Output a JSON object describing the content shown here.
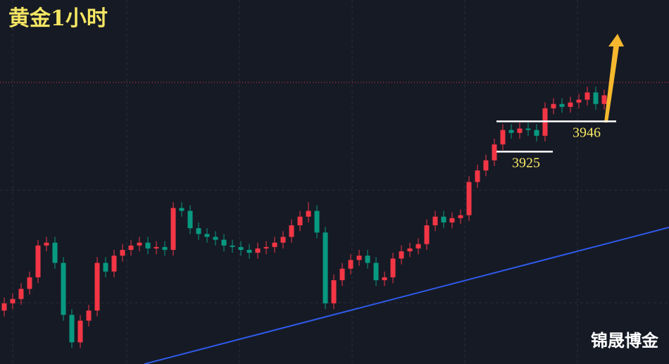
{
  "chart_data": {
    "type": "candlestick",
    "title": "黄金1小时",
    "watermark": "锦晟博金",
    "up_color": "#f23645",
    "down_color": "#089981",
    "ylim": [
      3778,
      4030
    ],
    "price_line": 3973,
    "levels": [
      {
        "label": "3946",
        "value": 3946
      },
      {
        "label": "3925",
        "value": 3925
      }
    ],
    "open": [
      3815,
      3820,
      3823,
      3830,
      3838,
      3860,
      3862,
      3848,
      3812,
      3793,
      3808,
      3815,
      3848,
      3842,
      3853,
      3857,
      3860,
      3862,
      3858,
      3859,
      3857,
      3886,
      3884,
      3872,
      3868,
      3866,
      3864,
      3860,
      3859,
      3857,
      3855,
      3858,
      3859,
      3862,
      3866,
      3874,
      3880,
      3884,
      3869,
      3820,
      3836,
      3844,
      3850,
      3853,
      3848,
      3836,
      3838,
      3851,
      3856,
      3858,
      3861,
      3874,
      3880,
      3876,
      3879,
      3881,
      3904,
      3912,
      3919,
      3930,
      3940,
      3938,
      3941,
      3940,
      3936,
      3955,
      3958,
      3956,
      3959,
      3961,
      3966,
      3958
    ],
    "high": [
      3824,
      3827,
      3834,
      3842,
      3864,
      3866,
      3866,
      3852,
      3816,
      3812,
      3819,
      3852,
      3852,
      3857,
      3861,
      3864,
      3866,
      3866,
      3863,
      3863,
      3890,
      3890,
      3888,
      3876,
      3872,
      3870,
      3868,
      3864,
      3863,
      3861,
      3862,
      3863,
      3866,
      3870,
      3878,
      3884,
      3890,
      3888,
      3873,
      3840,
      3848,
      3854,
      3857,
      3857,
      3852,
      3842,
      3855,
      3860,
      3862,
      3865,
      3878,
      3884,
      3884,
      3883,
      3885,
      3908,
      3916,
      3923,
      3934,
      3944,
      3944,
      3945,
      3945,
      3944,
      3959,
      3962,
      3962,
      3963,
      3965,
      3970,
      3970,
      3968
    ],
    "low": [
      3811,
      3816,
      3819,
      3826,
      3834,
      3856,
      3844,
      3808,
      3789,
      3789,
      3804,
      3811,
      3838,
      3838,
      3849,
      3853,
      3856,
      3854,
      3854,
      3853,
      3853,
      3880,
      3868,
      3864,
      3862,
      3860,
      3856,
      3855,
      3853,
      3851,
      3851,
      3854,
      3855,
      3858,
      3862,
      3870,
      3876,
      3865,
      3816,
      3816,
      3832,
      3840,
      3846,
      3844,
      3832,
      3832,
      3834,
      3847,
      3852,
      3854,
      3857,
      3870,
      3872,
      3872,
      3875,
      3877,
      3900,
      3908,
      3915,
      3926,
      3934,
      3934,
      3936,
      3932,
      3932,
      3951,
      3952,
      3952,
      3955,
      3957,
      3954,
      3954
    ],
    "close": [
      3820,
      3823,
      3830,
      3838,
      3860,
      3862,
      3848,
      3812,
      3793,
      3808,
      3815,
      3848,
      3842,
      3853,
      3857,
      3860,
      3862,
      3858,
      3859,
      3857,
      3886,
      3884,
      3872,
      3868,
      3866,
      3864,
      3860,
      3859,
      3857,
      3855,
      3858,
      3859,
      3862,
      3866,
      3874,
      3880,
      3884,
      3869,
      3820,
      3836,
      3844,
      3850,
      3853,
      3848,
      3836,
      3838,
      3851,
      3856,
      3858,
      3861,
      3874,
      3880,
      3876,
      3879,
      3881,
      3904,
      3912,
      3919,
      3930,
      3940,
      3938,
      3941,
      3940,
      3936,
      3955,
      3958,
      3956,
      3959,
      3961,
      3966,
      3958,
      3964
    ]
  }
}
